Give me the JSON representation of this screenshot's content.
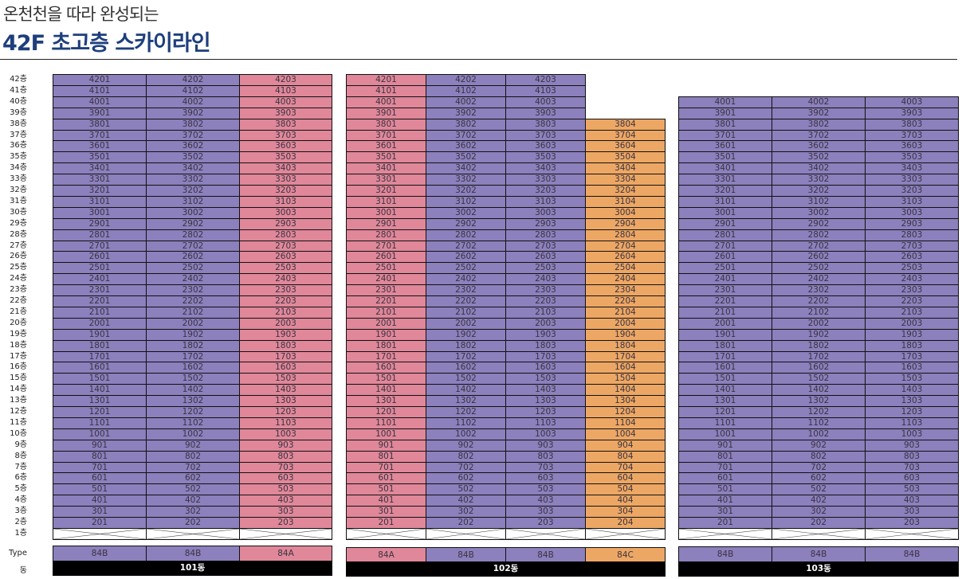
{
  "header": {
    "subtitle": "온천천을 따라 완성되는",
    "title": "42F 초고층 스카이라인"
  },
  "floor_labels": [
    "42층",
    "41층",
    "40층",
    "39층",
    "38층",
    "37층",
    "36층",
    "35층",
    "34층",
    "33층",
    "32층",
    "31층",
    "30층",
    "29층",
    "28층",
    "27층",
    "26층",
    "25층",
    "24층",
    "23층",
    "22층",
    "21층",
    "20층",
    "19층",
    "18층",
    "17층",
    "16층",
    "15층",
    "14층",
    "13층",
    "12층",
    "11층",
    "10층",
    "9층",
    "8층",
    "7층",
    "6층",
    "5층",
    "4층",
    "3층",
    "2층",
    "1층"
  ],
  "type_label": "Type",
  "dong_label": "동",
  "colors": {
    "84A": "#e0879a",
    "84B": "#8c80bd",
    "84C": "#eda764"
  },
  "buildings": [
    {
      "name": "101동",
      "types": [
        "84B",
        "84B",
        "84A"
      ],
      "units": [
        [
          "4201",
          "4202",
          "4203"
        ],
        [
          "4101",
          "4102",
          "4103"
        ],
        [
          "4001",
          "4002",
          "4003"
        ],
        [
          "3901",
          "3902",
          "3903"
        ],
        [
          "3801",
          "3802",
          "3803"
        ],
        [
          "3701",
          "3702",
          "3703"
        ],
        [
          "3601",
          "3602",
          "3603"
        ],
        [
          "3501",
          "3502",
          "3503"
        ],
        [
          "3401",
          "3402",
          "3403"
        ],
        [
          "3301",
          "3302",
          "3303"
        ],
        [
          "3201",
          "3202",
          "3203"
        ],
        [
          "3101",
          "3102",
          "3103"
        ],
        [
          "3001",
          "3002",
          "3003"
        ],
        [
          "2901",
          "2902",
          "2903"
        ],
        [
          "2801",
          "2802",
          "2803"
        ],
        [
          "2701",
          "2702",
          "2703"
        ],
        [
          "2601",
          "2602",
          "2603"
        ],
        [
          "2501",
          "2502",
          "2503"
        ],
        [
          "2401",
          "2402",
          "2403"
        ],
        [
          "2301",
          "2302",
          "2303"
        ],
        [
          "2201",
          "2202",
          "2203"
        ],
        [
          "2101",
          "2102",
          "2103"
        ],
        [
          "2001",
          "2002",
          "2003"
        ],
        [
          "1901",
          "1902",
          "1903"
        ],
        [
          "1801",
          "1802",
          "1803"
        ],
        [
          "1701",
          "1702",
          "1703"
        ],
        [
          "1601",
          "1602",
          "1603"
        ],
        [
          "1501",
          "1502",
          "1503"
        ],
        [
          "1401",
          "1402",
          "1403"
        ],
        [
          "1301",
          "1302",
          "1303"
        ],
        [
          "1201",
          "1202",
          "1203"
        ],
        [
          "1101",
          "1102",
          "1103"
        ],
        [
          "1001",
          "1002",
          "1003"
        ],
        [
          "901",
          "902",
          "903"
        ],
        [
          "801",
          "802",
          "803"
        ],
        [
          "701",
          "702",
          "703"
        ],
        [
          "601",
          "602",
          "603"
        ],
        [
          "501",
          "502",
          "503"
        ],
        [
          "401",
          "402",
          "403"
        ],
        [
          "301",
          "302",
          "303"
        ],
        [
          "201",
          "202",
          "203"
        ]
      ]
    },
    {
      "name": "102동",
      "types": [
        "84A",
        "84B",
        "84B",
        "84C"
      ],
      "units": [
        [
          "4201",
          "4202",
          "4203"
        ],
        [
          "4101",
          "4102",
          "4103"
        ],
        [
          "4001",
          "4002",
          "4003"
        ],
        [
          "3901",
          "3902",
          "3903"
        ],
        [
          "3801",
          "3802",
          "3803",
          "3804"
        ],
        [
          "3701",
          "3702",
          "3703",
          "3704"
        ],
        [
          "3601",
          "3602",
          "3603",
          "3604"
        ],
        [
          "3501",
          "3502",
          "3503",
          "3504"
        ],
        [
          "3401",
          "3402",
          "3403",
          "3404"
        ],
        [
          "3301",
          "3302",
          "3303",
          "3304"
        ],
        [
          "3201",
          "3202",
          "3203",
          "3204"
        ],
        [
          "3101",
          "3102",
          "3103",
          "3104"
        ],
        [
          "3001",
          "3002",
          "3003",
          "3004"
        ],
        [
          "2901",
          "2902",
          "2903",
          "2904"
        ],
        [
          "2801",
          "2802",
          "2803",
          "2804"
        ],
        [
          "2701",
          "2702",
          "2703",
          "2704"
        ],
        [
          "2601",
          "2602",
          "2603",
          "2604"
        ],
        [
          "2501",
          "2502",
          "2503",
          "2504"
        ],
        [
          "2401",
          "2402",
          "2403",
          "2404"
        ],
        [
          "2301",
          "2302",
          "2303",
          "2304"
        ],
        [
          "2201",
          "2202",
          "2203",
          "2204"
        ],
        [
          "2101",
          "2102",
          "2103",
          "2104"
        ],
        [
          "2001",
          "2002",
          "2003",
          "2004"
        ],
        [
          "1901",
          "1902",
          "1903",
          "1904"
        ],
        [
          "1801",
          "1802",
          "1803",
          "1804"
        ],
        [
          "1701",
          "1702",
          "1703",
          "1704"
        ],
        [
          "1601",
          "1602",
          "1603",
          "1604"
        ],
        [
          "1501",
          "1502",
          "1503",
          "1504"
        ],
        [
          "1401",
          "1402",
          "1403",
          "1404"
        ],
        [
          "1301",
          "1302",
          "1303",
          "1304"
        ],
        [
          "1201",
          "1202",
          "1203",
          "1204"
        ],
        [
          "1101",
          "1102",
          "1103",
          "1104"
        ],
        [
          "1001",
          "1002",
          "1003",
          "1004"
        ],
        [
          "901",
          "902",
          "903",
          "904"
        ],
        [
          "801",
          "802",
          "803",
          "804"
        ],
        [
          "701",
          "702",
          "703",
          "704"
        ],
        [
          "601",
          "602",
          "603",
          "604"
        ],
        [
          "501",
          "502",
          "503",
          "504"
        ],
        [
          "401",
          "402",
          "403",
          "404"
        ],
        [
          "301",
          "302",
          "303",
          "304"
        ],
        [
          "201",
          "202",
          "203",
          "204"
        ]
      ]
    },
    {
      "name": "103동",
      "types": [
        "84B",
        "84B",
        "84B"
      ],
      "units": [
        [
          "4001",
          "4002",
          "4003"
        ],
        [
          "3901",
          "3902",
          "3903"
        ],
        [
          "3801",
          "3802",
          "3803"
        ],
        [
          "3701",
          "3702",
          "3703"
        ],
        [
          "3601",
          "3602",
          "3603"
        ],
        [
          "3501",
          "3502",
          "3503"
        ],
        [
          "3401",
          "3402",
          "3403"
        ],
        [
          "3301",
          "3302",
          "3303"
        ],
        [
          "3201",
          "3202",
          "3203"
        ],
        [
          "3101",
          "3102",
          "3103"
        ],
        [
          "3001",
          "3002",
          "3003"
        ],
        [
          "2901",
          "2902",
          "2903"
        ],
        [
          "2801",
          "2802",
          "2803"
        ],
        [
          "2701",
          "2702",
          "2703"
        ],
        [
          "2601",
          "2602",
          "2603"
        ],
        [
          "2501",
          "2502",
          "2503"
        ],
        [
          "2401",
          "2402",
          "2403"
        ],
        [
          "2301",
          "2302",
          "2303"
        ],
        [
          "2201",
          "2202",
          "2203"
        ],
        [
          "2101",
          "2102",
          "2103"
        ],
        [
          "2001",
          "2002",
          "2003"
        ],
        [
          "1901",
          "1902",
          "1903"
        ],
        [
          "1801",
          "1802",
          "1803"
        ],
        [
          "1701",
          "1702",
          "1703"
        ],
        [
          "1601",
          "1602",
          "1603"
        ],
        [
          "1501",
          "1502",
          "1503"
        ],
        [
          "1401",
          "1402",
          "1403"
        ],
        [
          "1301",
          "1302",
          "1303"
        ],
        [
          "1201",
          "1202",
          "1203"
        ],
        [
          "1101",
          "1102",
          "1103"
        ],
        [
          "1001",
          "1002",
          "1003"
        ],
        [
          "901",
          "902",
          "903"
        ],
        [
          "801",
          "802",
          "803"
        ],
        [
          "701",
          "702",
          "703"
        ],
        [
          "601",
          "602",
          "603"
        ],
        [
          "501",
          "502",
          "503"
        ],
        [
          "401",
          "402",
          "403"
        ],
        [
          "301",
          "302",
          "303"
        ],
        [
          "201",
          "202",
          "203"
        ]
      ]
    }
  ]
}
